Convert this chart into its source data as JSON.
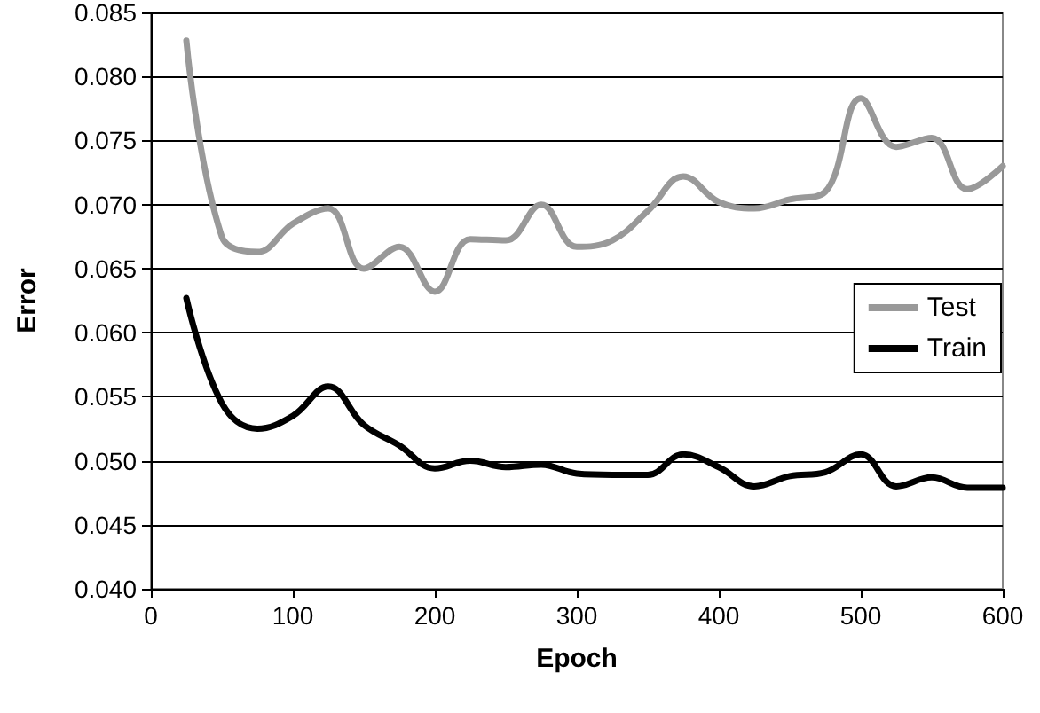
{
  "chart_data": {
    "type": "line",
    "xlabel": "Epoch",
    "ylabel": "Error",
    "xlim": [
      0,
      600
    ],
    "xticks": [
      0,
      100,
      200,
      300,
      400,
      500,
      600
    ],
    "ylim": [
      0.04,
      0.085
    ],
    "yticks": [
      {
        "value": 0.04,
        "label": "0.040"
      },
      {
        "value": 0.045,
        "label": "0.045"
      },
      {
        "value": 0.05,
        "label": "0.050"
      },
      {
        "value": 0.055,
        "label": "0.055"
      },
      {
        "value": 0.06,
        "label": "0.060"
      },
      {
        "value": 0.065,
        "label": "0.065"
      },
      {
        "value": 0.07,
        "label": "0.070"
      },
      {
        "value": 0.075,
        "label": "0.075"
      },
      {
        "value": 0.08,
        "label": "0.080"
      },
      {
        "value": 0.085,
        "label": "0.085"
      }
    ],
    "grid": "y",
    "legend": "right",
    "marker": "none",
    "line_style": "solid",
    "x": [
      25,
      50,
      75,
      100,
      125,
      150,
      175,
      200,
      225,
      250,
      275,
      300,
      325,
      350,
      375,
      400,
      425,
      450,
      475,
      500,
      525,
      550,
      575,
      600
    ],
    "series": [
      {
        "name": "Test",
        "color": "#999999",
        "values": [
          0.0828,
          0.0675,
          0.0663,
          0.0685,
          0.0697,
          0.065,
          0.0667,
          0.0632,
          0.0673,
          0.0672,
          0.07,
          0.0667,
          0.0672,
          0.0695,
          0.0722,
          0.0702,
          0.0697,
          0.0704,
          0.071,
          0.0783,
          0.0745,
          0.0752,
          0.0712,
          0.073
        ]
      },
      {
        "name": "Train",
        "color": "#000000",
        "values": [
          0.0627,
          0.0545,
          0.0525,
          0.0535,
          0.0558,
          0.0528,
          0.0512,
          0.0494,
          0.05,
          0.0495,
          0.0497,
          0.049,
          0.0489,
          0.0489,
          0.0505,
          0.0495,
          0.048,
          0.0488,
          0.0491,
          0.0505,
          0.048,
          0.0487,
          0.0479,
          0.0479
        ]
      }
    ]
  }
}
